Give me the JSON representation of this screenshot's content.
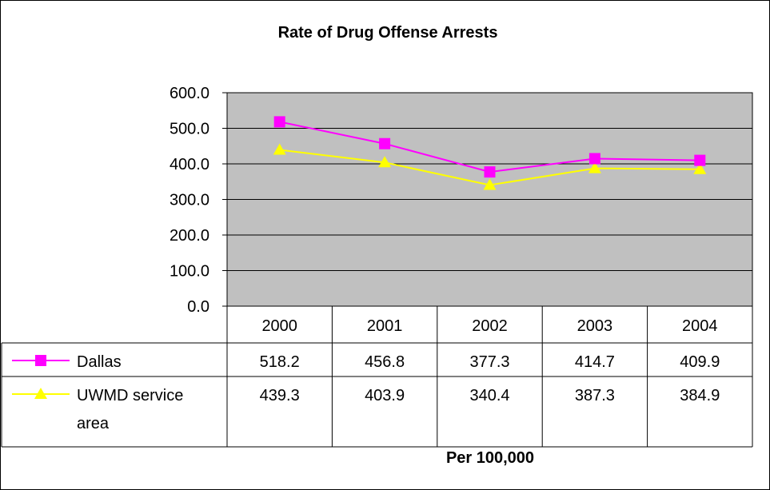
{
  "chart_data": {
    "type": "line",
    "title": "Rate of Drug Offense Arrests",
    "xlabel": "Per 100,000",
    "ylabel": "",
    "categories": [
      "2000",
      "2001",
      "2002",
      "2003",
      "2004"
    ],
    "ylim": [
      0,
      600
    ],
    "yticks": [
      "600.0",
      "500.0",
      "400.0",
      "300.0",
      "200.0",
      "100.0",
      "0.0"
    ],
    "grid": true,
    "legend": "data-table",
    "series": [
      {
        "name": "Dallas",
        "name_lines": [
          "Dallas"
        ],
        "values": [
          518.2,
          456.8,
          377.3,
          414.7,
          409.9
        ],
        "labels": [
          "518.2",
          "456.8",
          "377.3",
          "414.7",
          "409.9"
        ],
        "color": "#FF00FF",
        "marker": "square"
      },
      {
        "name": "UWMD service area",
        "name_lines": [
          "UWMD service",
          "area"
        ],
        "values": [
          439.3,
          403.9,
          340.4,
          387.3,
          384.9
        ],
        "labels": [
          "439.3",
          "403.9",
          "340.4",
          "387.3",
          "384.9"
        ],
        "color": "#FFFF00",
        "marker": "triangle"
      }
    ],
    "plot_background": "#C0C0C0"
  }
}
